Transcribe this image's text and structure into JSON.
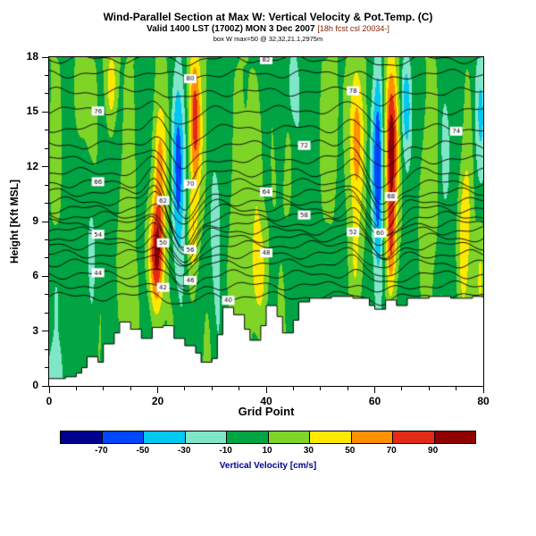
{
  "header": {
    "title": "Wind-Parallel Section at Max W: Vertical Velocity & Pot.Temp. (C)",
    "valid_line": "Valid 1400 LST (1700Z) MON 3 Dec 2007",
    "fcst_note": "[18h fcst csl 20034-]",
    "info_line": "box W max=50 @ 32,32,21.1,2975m"
  },
  "chart_data": {
    "type": "heatmap",
    "title": "Wind-Parallel Section at Max W: Vertical Velocity & Pot.Temp. (C)",
    "xlabel": "Grid Point",
    "ylabel": "Height [Kft MSL]",
    "xlim": [
      0,
      80
    ],
    "ylim": [
      0,
      18
    ],
    "x_major_ticks": [
      0,
      20,
      40,
      60,
      80
    ],
    "x_minor_step": 5,
    "y_major_ticks": [
      0,
      3,
      6,
      9,
      12,
      15,
      18
    ],
    "y_minor_step": 1,
    "grid": "off",
    "legend": "none",
    "colorbar": {
      "label": "Vertical Velocity [cm/s]",
      "label_color": "#00008b",
      "boundary_labels": [
        "-70",
        "-50",
        "-30",
        "-10",
        "10",
        "30",
        "50",
        "70",
        "90"
      ],
      "segment_colors": [
        "#00008f",
        "#0047ff",
        "#00c8f0",
        "#7fe6c8",
        "#00a443",
        "#7fd428",
        "#ffe800",
        "#ff9000",
        "#e12b17",
        "#8f0000"
      ]
    },
    "field": {
      "base": 4,
      "stripe_amp": 9,
      "h_gradient": 0.25,
      "bands": [
        {
          "x": 1.0,
          "sx": 1.6,
          "amp": -38,
          "h": 0.8,
          "sh": 1.8
        },
        {
          "x": 1.2,
          "sx": 1.2,
          "amp": -16,
          "h": 4.5,
          "sh": 2.5
        },
        {
          "x": 6.0,
          "sx": 1.1,
          "amp": 16,
          "h": 16.0,
          "sh": 3.0
        },
        {
          "x": 7.8,
          "sx": 1.0,
          "amp": -24,
          "h": 8.0,
          "sh": 5.0
        },
        {
          "x": 11.5,
          "sx": 1.0,
          "amp": 36,
          "h": 16.5,
          "sh": 2.2
        },
        {
          "x": 14.0,
          "sx": 1.3,
          "amp": 20,
          "h": 8.0,
          "sh": 4.0
        },
        {
          "x": 19.8,
          "sx": 1.4,
          "amp": 88,
          "h": 7.2,
          "sh": 2.8
        },
        {
          "x": 20.2,
          "sx": 1.1,
          "amp": 50,
          "h": 12.0,
          "sh": 3.5
        },
        {
          "x": 23.8,
          "sx": 1.2,
          "amp": -68,
          "h": 12.0,
          "sh": 5.5
        },
        {
          "x": 26.8,
          "sx": 1.1,
          "amp": 78,
          "h": 14.5,
          "sh": 3.8
        },
        {
          "x": 26.5,
          "sx": 0.9,
          "amp": 40,
          "h": 8.5,
          "sh": 2.5
        },
        {
          "x": 30.5,
          "sx": 1.3,
          "amp": -24,
          "h": 9.0,
          "sh": 6.0
        },
        {
          "x": 34.5,
          "sx": 1.3,
          "amp": 22,
          "h": 7.0,
          "sh": 5.0
        },
        {
          "x": 38.5,
          "sx": 1.5,
          "amp": 40,
          "h": 6.5,
          "sh": 3.5
        },
        {
          "x": 38.5,
          "sx": 1.2,
          "amp": 22,
          "h": 12.5,
          "sh": 3.0
        },
        {
          "x": 42.5,
          "sx": 1.0,
          "amp": -18,
          "h": 15.0,
          "sh": 3.0
        },
        {
          "x": 45.0,
          "sx": 1.1,
          "amp": -34,
          "h": 16.5,
          "sh": 2.2
        },
        {
          "x": 48.5,
          "sx": 1.4,
          "amp": -14,
          "h": 9.0,
          "sh": 6.0
        },
        {
          "x": 52.5,
          "sx": 1.1,
          "amp": 20,
          "h": 13.0,
          "sh": 4.0
        },
        {
          "x": 56.5,
          "sx": 1.3,
          "amp": 46,
          "h": 13.5,
          "sh": 4.0
        },
        {
          "x": 56.5,
          "sx": 1.1,
          "amp": 22,
          "h": 7.0,
          "sh": 3.0
        },
        {
          "x": 60.6,
          "sx": 1.0,
          "amp": -72,
          "h": 12.0,
          "sh": 6.0
        },
        {
          "x": 63.0,
          "sx": 1.1,
          "amp": 95,
          "h": 13.0,
          "sh": 4.5
        },
        {
          "x": 63.0,
          "sx": 0.9,
          "amp": 45,
          "h": 7.5,
          "sh": 2.5
        },
        {
          "x": 65.8,
          "sx": 1.0,
          "amp": -48,
          "h": 15.5,
          "sh": 3.0
        },
        {
          "x": 69.5,
          "sx": 1.3,
          "amp": 22,
          "h": 9.0,
          "sh": 5.0
        },
        {
          "x": 73.0,
          "sx": 1.1,
          "amp": -20,
          "h": 13.0,
          "sh": 4.0
        },
        {
          "x": 76.5,
          "sx": 1.1,
          "amp": 42,
          "h": 8.0,
          "sh": 4.0
        },
        {
          "x": 79.5,
          "sx": 1.3,
          "amp": -40,
          "h": 15.0,
          "sh": 4.0
        },
        {
          "x": 79.5,
          "sx": 0.9,
          "amp": 25,
          "h": 6.0,
          "sh": 3.0
        }
      ]
    },
    "wave_regions": [
      {
        "x": 24.8,
        "rise_x": 19.5,
        "sigma": 3.0,
        "rise_frac": 0.45,
        "max_dip": 2.0,
        "dip_center_h": 10.5,
        "h_sigma": 4.5
      },
      {
        "x": 61.5,
        "rise_x": 56.0,
        "sigma": 3.2,
        "rise_frac": 0.4,
        "max_dip": 1.6,
        "dip_center_h": 11.5,
        "h_sigma": 5.0
      }
    ],
    "terrain_profile": [
      [
        0,
        0.4
      ],
      [
        3,
        0.5
      ],
      [
        5,
        0.7
      ],
      [
        6,
        1.0
      ],
      [
        7,
        1.6
      ],
      [
        9,
        1.3
      ],
      [
        10,
        2.3
      ],
      [
        12,
        2.9
      ],
      [
        13,
        3.5
      ],
      [
        15,
        3.1
      ],
      [
        17,
        2.6
      ],
      [
        19,
        3.2
      ],
      [
        21,
        3.3
      ],
      [
        23,
        2.6
      ],
      [
        25,
        2.2
      ],
      [
        27,
        1.8
      ],
      [
        28,
        1.3
      ],
      [
        30,
        1.5
      ],
      [
        31,
        2.8
      ],
      [
        32,
        4.3
      ],
      [
        34,
        3.9
      ],
      [
        36,
        3.1
      ],
      [
        37,
        2.5
      ],
      [
        39,
        3.3
      ],
      [
        40,
        4.4
      ],
      [
        42,
        3.8
      ],
      [
        43,
        2.9
      ],
      [
        45,
        3.6
      ],
      [
        46,
        4.6
      ],
      [
        48,
        4.8
      ],
      [
        52,
        4.9
      ],
      [
        56,
        4.8
      ],
      [
        59,
        4.4
      ],
      [
        60,
        4.2
      ],
      [
        62,
        4.7
      ],
      [
        64,
        4.4
      ],
      [
        66,
        4.8
      ],
      [
        70,
        4.9
      ],
      [
        74,
        4.8
      ],
      [
        78,
        4.9
      ],
      [
        80,
        4.8
      ]
    ],
    "theta_contours": {
      "color": "#000000",
      "units": "C",
      "levels": [
        {
          "h": 4.9,
          "label": "40",
          "label_x": 33
        },
        {
          "h": 5.5,
          "label": "42",
          "label_x": 21
        },
        {
          "h": 6.1,
          "label": "44",
          "label_x": 9
        },
        {
          "h": 6.7,
          "label": "46",
          "label_x": 26
        },
        {
          "h": 7.2,
          "label": "48",
          "label_x": 40
        },
        {
          "h": 7.7,
          "label": "50",
          "label_x": 21
        },
        {
          "h": 8.1,
          "label": "52",
          "label_x": 56
        },
        {
          "h": 8.5,
          "label": "54",
          "label_x": 9
        },
        {
          "h": 8.9,
          "label": "56",
          "label_x": 26
        },
        {
          "h": 9.3,
          "label": "58",
          "label_x": 47
        },
        {
          "h": 9.7,
          "label": "60",
          "label_x": 61
        },
        {
          "h": 10.1,
          "label": "62",
          "label_x": 21
        },
        {
          "h": 10.6,
          "label": "64",
          "label_x": 40
        },
        {
          "h": 11.1,
          "label": "66",
          "label_x": 9
        },
        {
          "h": 11.7,
          "label": "68",
          "label_x": 63
        },
        {
          "h": 12.4,
          "label": "70",
          "label_x": 26
        },
        {
          "h": 13.2,
          "label": "72",
          "label_x": 47
        },
        {
          "h": 14.1,
          "label": "74",
          "label_x": 75
        },
        {
          "h": 15.1,
          "label": "76",
          "label_x": 9
        },
        {
          "h": 16.1,
          "label": "78",
          "label_x": 56
        },
        {
          "h": 17.1,
          "label": "80",
          "label_x": 26
        },
        {
          "h": 17.9,
          "label": "82",
          "label_x": 40
        }
      ]
    }
  }
}
